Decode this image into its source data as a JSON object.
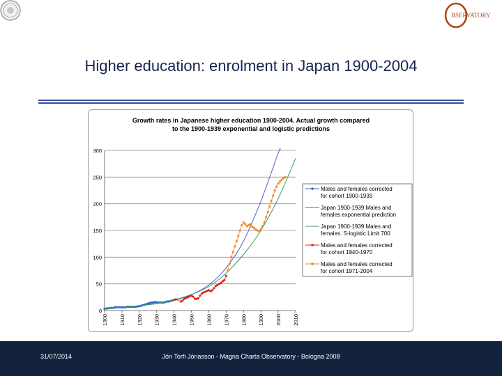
{
  "slide": {
    "title": "Higher education: enrolment in Japan 1900-2004",
    "logo_text": "BSERVATORY",
    "footer_date": "31/07/2014",
    "footer_text": "Jón Torfi Jónasson - Magna Charta Observatory - Bologna 2008"
  },
  "colors": {
    "title": "#1a2350",
    "rule": "#3a4a9c",
    "footer_bg": "#13223d",
    "logo": "#b5451b"
  },
  "chart_data": {
    "type": "scatter",
    "title": "Growth rates in Japanese higher education 1900-2004. Actual growth compared to the 1900-1939 exponential and logistic predictions",
    "title_lines": [
      "Growth rates in Japanese higher education 1900-2004. Actual growth compared",
      "to the 1900-1939 exponential and logistic predictions"
    ],
    "xlabel": "",
    "ylabel": "",
    "xlim": [
      1900,
      2010
    ],
    "ylim": [
      0,
      300
    ],
    "x_ticks": [
      "1900",
      "1910",
      "1920",
      "1930",
      "1940",
      "1950",
      "1960",
      "1970",
      "1980",
      "1990",
      "2000",
      "2010"
    ],
    "y_ticks": [
      "0",
      "50",
      "100",
      "150",
      "200",
      "250",
      "300"
    ],
    "grid": true,
    "legend_position": "right",
    "series": [
      {
        "name": "Males and females corrected for cohort 1900-1939",
        "legend_lines": [
          "Males and females corrected",
          "for cohort 1900-1939"
        ],
        "kind": "marker-line",
        "color": "#2a6bbf",
        "x": [
          1900,
          1901,
          1902,
          1903,
          1904,
          1905,
          1906,
          1907,
          1908,
          1909,
          1910,
          1911,
          1912,
          1913,
          1914,
          1915,
          1916,
          1917,
          1918,
          1919,
          1920,
          1921,
          1922,
          1923,
          1924,
          1925,
          1926,
          1927,
          1928,
          1929,
          1930,
          1931,
          1932,
          1933,
          1934,
          1935,
          1936,
          1937,
          1938,
          1939
        ],
        "y": [
          3,
          4,
          4,
          5,
          5,
          5,
          6,
          6,
          6,
          6,
          6,
          6,
          6,
          7,
          7,
          7,
          7,
          7,
          7,
          8,
          8,
          9,
          10,
          11,
          12,
          13,
          14,
          15,
          15,
          16,
          15,
          15,
          15,
          15,
          15,
          16,
          17,
          17,
          18,
          19
        ]
      },
      {
        "name": "Japan 1900-1939 Males and females exponential prediction",
        "legend_lines": [
          "Japan 1900-1939 Males and",
          "females exponential prediction"
        ],
        "kind": "line",
        "color": "#5a5ad0",
        "x": [
          1900,
          1910,
          1920,
          1930,
          1940,
          1950,
          1960,
          1970,
          1980,
          1990,
          2000,
          2001
        ],
        "y": [
          4,
          6,
          9,
          13,
          19,
          30,
          48,
          80,
          130,
          205,
          295,
          300
        ]
      },
      {
        "name": "Japan 1900-1939 Males and females. S-logistic Limit 700",
        "legend_lines": [
          "Japan 1900-1939 Males and",
          "females. S-logistic Limit 700"
        ],
        "kind": "line",
        "color": "#3a9a60",
        "x": [
          1900,
          1910,
          1920,
          1930,
          1940,
          1950,
          1960,
          1970,
          1980,
          1990,
          2000,
          2010
        ],
        "y": [
          4,
          6,
          9,
          13,
          20,
          30,
          45,
          70,
          105,
          150,
          210,
          285
        ]
      },
      {
        "name": "Males and females corrected for cohort 1940-1970",
        "legend_lines": [
          "Males and females corrected",
          "for cohort 1940-1970"
        ],
        "kind": "marker-line",
        "color": "#e0201c",
        "x": [
          1940,
          1941,
          1944,
          1945,
          1946,
          1947,
          1948,
          1949,
          1950,
          1951,
          1952,
          1953,
          1954,
          1955,
          1956,
          1957,
          1958,
          1959,
          1960,
          1961,
          1962,
          1963,
          1964,
          1965,
          1966,
          1967,
          1968,
          1969,
          1970
        ],
        "y": [
          20,
          21,
          17,
          19,
          22,
          24,
          25,
          27,
          28,
          26,
          22,
          22,
          23,
          28,
          32,
          34,
          35,
          37,
          38,
          36,
          38,
          42,
          46,
          48,
          50,
          52,
          55,
          57,
          65
        ]
      },
      {
        "name": "Males and females corrected for cohort 1971-2004",
        "legend_lines": [
          "Males and females corrected",
          "for cohort 1971-2004"
        ],
        "kind": "marker-line",
        "color": "#f08a24",
        "x": [
          1971,
          1972,
          1973,
          1974,
          1975,
          1976,
          1977,
          1978,
          1979,
          1980,
          1981,
          1982,
          1983,
          1984,
          1985,
          1986,
          1987,
          1988,
          1989,
          1990,
          1991,
          1992,
          1993,
          1994,
          1995,
          1996,
          1997,
          1998,
          1999,
          2000,
          2001,
          2002,
          2003,
          2004
        ],
        "y": [
          75,
          88,
          100,
          110,
          120,
          130,
          140,
          150,
          160,
          165,
          162,
          158,
          160,
          162,
          157,
          155,
          152,
          150,
          148,
          152,
          158,
          165,
          175,
          185,
          195,
          205,
          215,
          225,
          232,
          238,
          242,
          245,
          248,
          250
        ]
      }
    ]
  }
}
